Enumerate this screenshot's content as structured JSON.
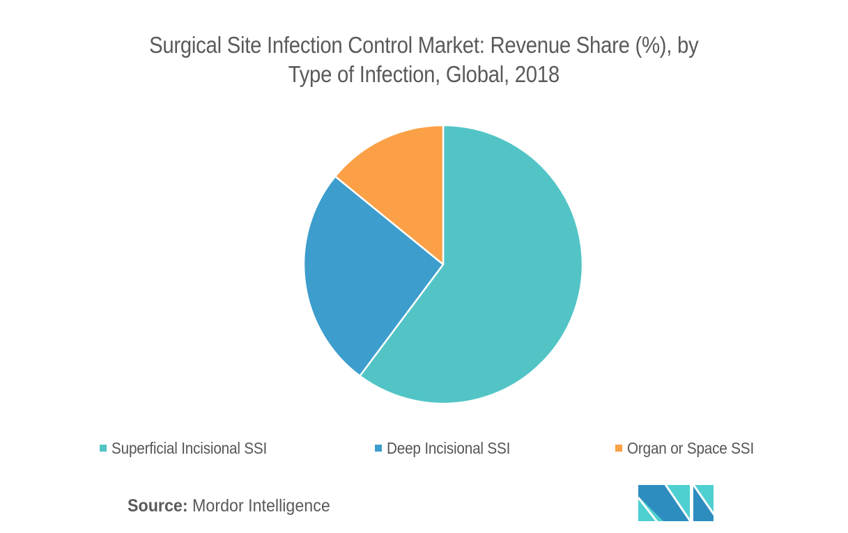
{
  "title": {
    "line1": "Surgical Site Infection Control Market: Revenue Share (%), by",
    "line2": "Type of Infection, Global, 2018"
  },
  "legend": {
    "items": [
      {
        "label": "Superficial Incisional SSI",
        "color": "#52C4C6"
      },
      {
        "label": "Deep Incisional SSI",
        "color": "#3D9DCD"
      },
      {
        "label": "Organ or Space SSI",
        "color": "#FBA046"
      }
    ]
  },
  "source": {
    "key": "Source:",
    "value": "Mordor Intelligence"
  },
  "logo": {
    "name": "mordor-intelligence-logo",
    "colors": {
      "dark": "#2E8DBF",
      "light": "#4ECFD0"
    }
  },
  "chart_data": {
    "type": "pie",
    "title": "Surgical Site Infection Control Market: Revenue Share (%), by Type of Infection, Global, 2018",
    "categories": [
      "Superficial Incisional SSI",
      "Deep Incisional SSI",
      "Organ or Space SSI"
    ],
    "values": [
      60.2,
      25.7,
      14.1
    ],
    "colors": [
      "#52C4C6",
      "#3D9DCD",
      "#FBA046"
    ],
    "start_angle_deg": 0,
    "direction": "clockwise",
    "unit": "%",
    "legend_position": "bottom",
    "data_labels": false,
    "source": "Mordor Intelligence"
  }
}
